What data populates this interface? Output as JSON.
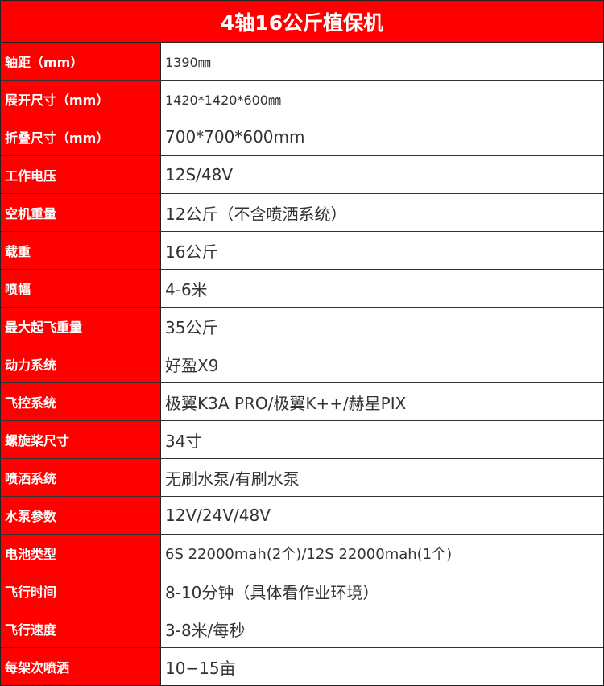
{
  "title": "4轴16公斤植保机",
  "colors": {
    "header_bg": "#ff0000",
    "label_text": "#ffffff",
    "value_text": "#333333"
  },
  "rows": [
    {
      "label": "轴距（mm）",
      "value": "1390㎜"
    },
    {
      "label": "展开尺寸（mm）",
      "value": "1420*1420*600㎜"
    },
    {
      "label": "折叠尺寸（mm）",
      "value": "700*700*600mm"
    },
    {
      "label": "工作电压",
      "value": "12S/48V"
    },
    {
      "label": "空机重量",
      "value": "12公斤（不含喷洒系统）"
    },
    {
      "label": "载重",
      "value": "16公斤"
    },
    {
      "label": "喷幅",
      "value": "4-6米"
    },
    {
      "label": "最大起飞重量",
      "value": "35公斤"
    },
    {
      "label": "动力系统",
      "value": "好盈X9"
    },
    {
      "label": "飞控系统",
      "value": "极翼K3A PRO/极翼K++/赫星PIX"
    },
    {
      "label": "螺旋桨尺寸",
      "value": "34寸"
    },
    {
      "label": "喷洒系统",
      "value": "无刷水泵/有刷水泵"
    },
    {
      "label": "水泵参数",
      "value": "12V/24V/48V"
    },
    {
      "label": "电池类型",
      "value": "6S 22000mah(2个)/12S 22000mah(1个)"
    },
    {
      "label": "飞行时间",
      "value": "8-10分钟（具体看作业环境）"
    },
    {
      "label": "飞行速度",
      "value": "3-8米/每秒"
    },
    {
      "label": "每架次喷洒",
      "value": "10−15亩"
    }
  ]
}
